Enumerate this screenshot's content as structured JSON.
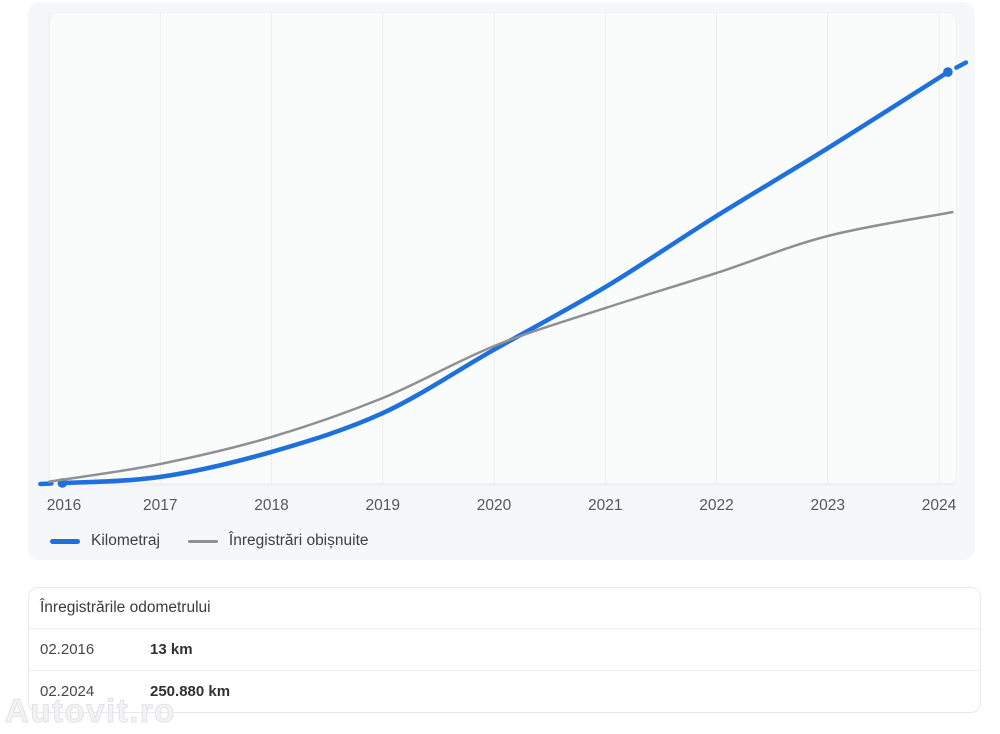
{
  "chart": {
    "legend": [
      {
        "label": "Kilometraj",
        "color": "#1e70dd"
      },
      {
        "label": "Înregistrări obișnuite",
        "color": "#8f9092"
      }
    ]
  },
  "chart_data": {
    "type": "line",
    "title": "",
    "x_tick_labels": [
      "2016",
      "2017",
      "2018",
      "2019",
      "2020",
      "2021",
      "2022",
      "2023",
      "2024"
    ],
    "x_ticks": [
      2016,
      2017,
      2018,
      2019,
      2020,
      2021,
      2022,
      2023,
      2024
    ],
    "x_range": [
      2016,
      2024.2
    ],
    "y_range_km": [
      0,
      287000
    ],
    "grid": "vertical-only",
    "legend_position": "bottom-left",
    "series": [
      {
        "name": "Kilometraj",
        "color": "#1e70dd",
        "width": 4.5,
        "endpoint_dots": true,
        "edge_dashes": true,
        "x": [
          2016.12,
          2017,
          2018,
          2019,
          2020,
          2021,
          2022,
          2023,
          2024.08
        ],
        "values_km": [
          13,
          3700,
          19000,
          42700,
          81400,
          119600,
          163000,
          204400,
          250880
        ]
      },
      {
        "name": "Înregistrări obișnuite",
        "color": "#8f9092",
        "width": 2.5,
        "endpoint_dots": false,
        "edge_dashes": false,
        "x": [
          2016,
          2017,
          2018,
          2019,
          2020,
          2021,
          2022,
          2023,
          2024.12
        ],
        "values_km": [
          800,
          11600,
          28100,
          51900,
          83600,
          106800,
          128200,
          150800,
          165400
        ]
      }
    ]
  },
  "table": {
    "title": "Înregistrările odometrului",
    "rows": [
      {
        "date": "02.2016",
        "value": "13 km"
      },
      {
        "date": "02.2024",
        "value": "250.880 km"
      }
    ]
  },
  "watermark": "Autovit.ro"
}
